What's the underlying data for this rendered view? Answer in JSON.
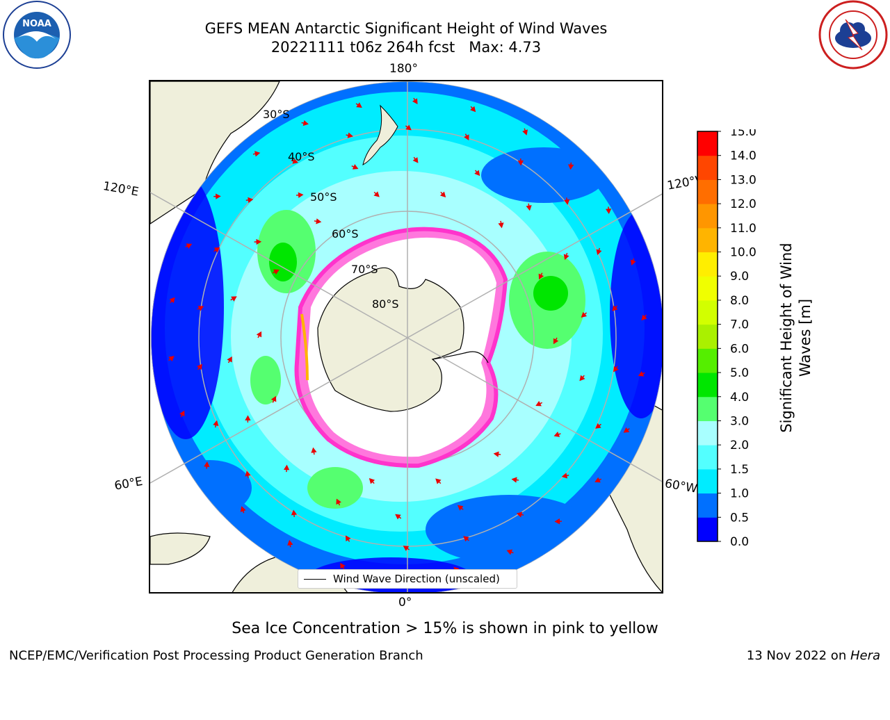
{
  "header": {
    "title_line1": "GEFS MEAN Antarctic Significant Height of Wind Waves",
    "title_line2": "20221111 t06z 264h fcst   Max: 4.73"
  },
  "logos": {
    "noaa_text": "NOAA",
    "noaa_ring": "NATIONAL OCEANIC AND ATMOSPHERIC ADMINISTRATION · U.S. DEPARTMENT OF COMMERCE",
    "nws_ring": "NATIONAL WEATHER SERVICE"
  },
  "map": {
    "projection": "south-polar-stereographic",
    "longitude_labels": [
      "180°",
      "120°E",
      "120°W",
      "60°E",
      "60°W",
      "0°"
    ],
    "latitude_labels": [
      "30°S",
      "40°S",
      "50°S",
      "60°S",
      "70°S",
      "80°S"
    ],
    "legend_label": "Wind Wave Direction (unscaled)",
    "colors": {
      "land": "#efefdb",
      "ice_edge": "#ff33cc",
      "arrow": "#e80000",
      "grid": "#b0b0b0"
    }
  },
  "colorbar": {
    "label_line1": "Significant Height of Wind",
    "label_line2": "Waves [m]",
    "ticks": [
      "15.0",
      "14.0",
      "13.0",
      "12.0",
      "11.0",
      "10.0",
      "9.0",
      "8.0",
      "7.0",
      "6.0",
      "5.0",
      "4.0",
      "3.0",
      "2.0",
      "1.5",
      "1.0",
      "0.5",
      "0.0"
    ],
    "colors": [
      "#0000ff",
      "#0070ff",
      "#00ecff",
      "#53ffff",
      "#a8ffff",
      "#55ff70",
      "#00e600",
      "#55ee00",
      "#aaf000",
      "#d2ff00",
      "#f0ff00",
      "#ffee00",
      "#ffb400",
      "#ff9600",
      "#ff6e00",
      "#ff4600",
      "#ff0000"
    ]
  },
  "caption": "Sea Ice Concentration > 15% is shown in pink to yellow",
  "footer": {
    "left": "NCEP/EMC/Verification Post Processing Product Generation Branch",
    "right_date": "13 Nov 2022 on ",
    "right_host": "Hera"
  }
}
